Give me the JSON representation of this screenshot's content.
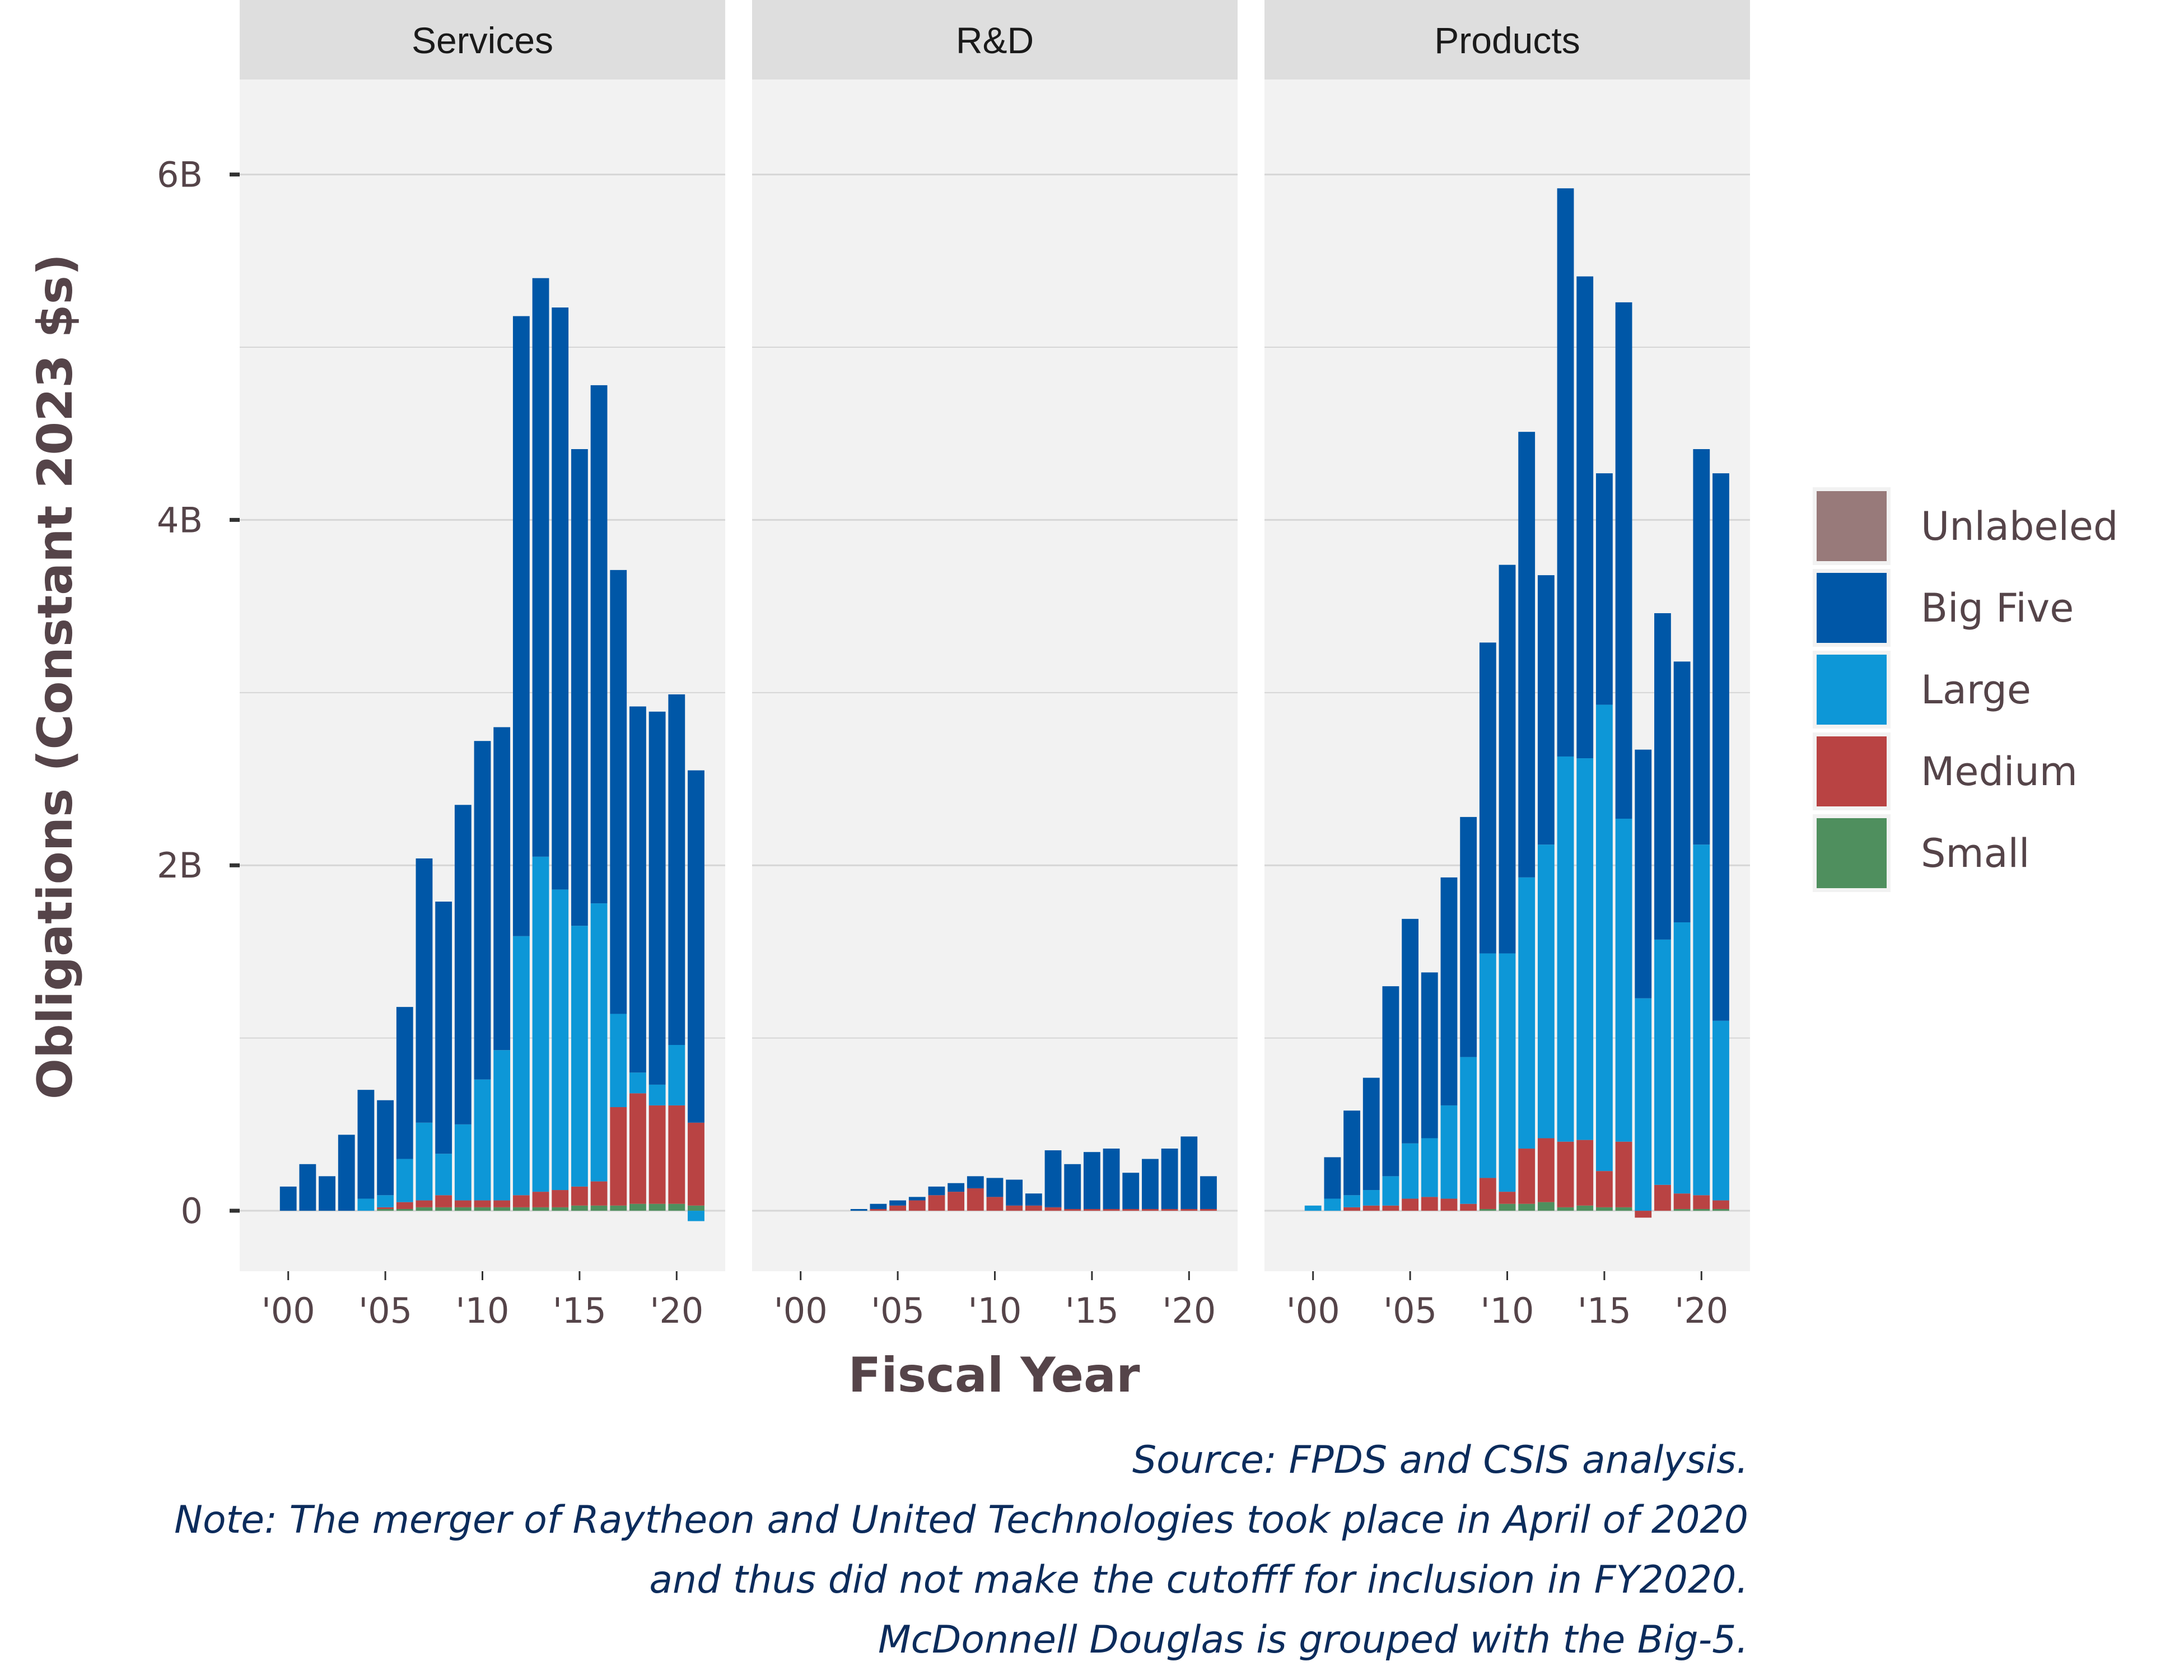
{
  "chart_data": {
    "type": "bar",
    "stacked": true,
    "ylabel": "Obligations (Constant 2023 $s)",
    "xlabel": "Fiscal Year",
    "ylim": [
      -0.35,
      6.55
    ],
    "y_ticks": [
      0,
      2,
      4,
      6
    ],
    "y_tick_labels": [
      "0",
      "2B",
      "4B",
      "6B"
    ],
    "y_units": "billions of constant 2023 dollars",
    "x_range": [
      1997.5,
      2022.5
    ],
    "x_ticks": [
      2000,
      2005,
      2010,
      2015,
      2020
    ],
    "x_tick_labels": [
      "'00",
      "'05",
      "'10",
      "'15",
      "'20"
    ],
    "grid": true,
    "legend_position": "right",
    "legend": [
      {
        "key": "Unlabeled",
        "label": "Unlabeled",
        "color": "#987a7a"
      },
      {
        "key": "BigFive",
        "label": "Big Five",
        "color": "#0057a7"
      },
      {
        "key": "Large",
        "label": "Large",
        "color": "#0d97d7"
      },
      {
        "key": "Medium",
        "label": "Medium",
        "color": "#b94343"
      },
      {
        "key": "Small",
        "label": "Small",
        "color": "#4f8f5e"
      }
    ],
    "stack_order": [
      "Small",
      "Medium",
      "Large",
      "BigFive"
    ],
    "panels": [
      {
        "name": "Services",
        "x": [
          2000,
          2001,
          2002,
          2003,
          2004,
          2005,
          2006,
          2007,
          2008,
          2009,
          2010,
          2011,
          2012,
          2013,
          2014,
          2015,
          2016,
          2017,
          2018,
          2019,
          2020,
          2021
        ],
        "Small": [
          0,
          0,
          0,
          0,
          0,
          0.01,
          0.01,
          0.02,
          0.02,
          0.02,
          0.02,
          0.02,
          0.02,
          0.02,
          0.02,
          0.03,
          0.03,
          0.03,
          0.04,
          0.04,
          0.04,
          0.03
        ],
        "Medium": [
          0,
          0,
          0,
          0,
          0,
          0.01,
          0.04,
          0.04,
          0.07,
          0.04,
          0.04,
          0.04,
          0.07,
          0.09,
          0.1,
          0.11,
          0.14,
          0.57,
          0.64,
          0.57,
          0.57,
          0.48
        ],
        "Large": [
          0,
          0,
          0,
          0,
          0.07,
          0.07,
          0.25,
          0.45,
          0.24,
          0.44,
          0.7,
          0.87,
          1.5,
          1.94,
          1.74,
          1.51,
          1.61,
          0.54,
          0.12,
          0.12,
          0.35,
          -0.06
        ],
        "BigFive": [
          0.14,
          0.27,
          0.2,
          0.44,
          0.63,
          0.55,
          0.88,
          1.53,
          1.46,
          1.85,
          1.96,
          1.87,
          3.59,
          3.35,
          3.37,
          2.76,
          3.0,
          2.57,
          2.12,
          2.16,
          2.03,
          2.04
        ]
      },
      {
        "name": "R&D",
        "x": [
          2000,
          2001,
          2002,
          2003,
          2004,
          2005,
          2006,
          2007,
          2008,
          2009,
          2010,
          2011,
          2012,
          2013,
          2014,
          2015,
          2016,
          2017,
          2018,
          2019,
          2020,
          2021
        ],
        "Small": [
          0,
          0,
          0,
          0,
          0,
          0,
          0,
          0,
          0,
          0,
          0,
          0,
          0,
          0,
          0,
          0,
          0,
          0,
          0,
          0,
          0,
          0
        ],
        "Medium": [
          0,
          0,
          0,
          0,
          0.01,
          0.03,
          0.06,
          0.09,
          0.11,
          0.13,
          0.08,
          0.03,
          0.03,
          0.02,
          0.01,
          0.01,
          0.01,
          0.01,
          0.01,
          0.01,
          0.01,
          0.01
        ],
        "Large": [
          0,
          0,
          0,
          0,
          0,
          0,
          0,
          0,
          0,
          0,
          0,
          0,
          0,
          0,
          0,
          0,
          0,
          0,
          0,
          0,
          0,
          0
        ],
        "BigFive": [
          0,
          0,
          0,
          0.01,
          0.03,
          0.03,
          0.02,
          0.05,
          0.05,
          0.07,
          0.11,
          0.15,
          0.07,
          0.33,
          0.26,
          0.33,
          0.35,
          0.21,
          0.29,
          0.35,
          0.42,
          0.19
        ]
      },
      {
        "name": "Products",
        "x": [
          2000,
          2001,
          2002,
          2003,
          2004,
          2005,
          2006,
          2007,
          2008,
          2009,
          2010,
          2011,
          2012,
          2013,
          2014,
          2015,
          2016,
          2017,
          2018,
          2019,
          2020,
          2021
        ],
        "Small": [
          0,
          0,
          0,
          0,
          0,
          0,
          0,
          0,
          0,
          0.01,
          0.04,
          0.04,
          0.05,
          0.02,
          0.03,
          0.02,
          0.02,
          0,
          0,
          0.01,
          0.01,
          0.01
        ],
        "Medium": [
          0,
          0,
          0.02,
          0.03,
          0.03,
          0.07,
          0.08,
          0.07,
          0.04,
          0.18,
          0.07,
          0.32,
          0.37,
          0.38,
          0.38,
          0.21,
          0.38,
          -0.04,
          0.15,
          0.09,
          0.08,
          0.05
        ],
        "Large": [
          0.03,
          0.07,
          0.07,
          0.09,
          0.17,
          0.32,
          0.34,
          0.54,
          0.85,
          1.3,
          1.38,
          1.57,
          1.7,
          2.23,
          2.21,
          2.7,
          1.87,
          1.23,
          1.42,
          1.57,
          2.03,
          1.04
        ],
        "BigFive": [
          0,
          0.24,
          0.49,
          0.65,
          1.1,
          1.3,
          0.96,
          1.32,
          1.39,
          1.8,
          2.25,
          2.58,
          1.56,
          3.29,
          2.79,
          1.34,
          2.99,
          1.44,
          1.89,
          1.51,
          2.29,
          3.17
        ]
      }
    ]
  },
  "caption": [
    "Source: FPDS and CSIS analysis.",
    "Note: The merger of Raytheon and United Technologies took place in April of 2020",
    "and thus did not make the cutofff for inclusion in FY2020.",
    "McDonnell Douglas is grouped with the Big-5."
  ]
}
